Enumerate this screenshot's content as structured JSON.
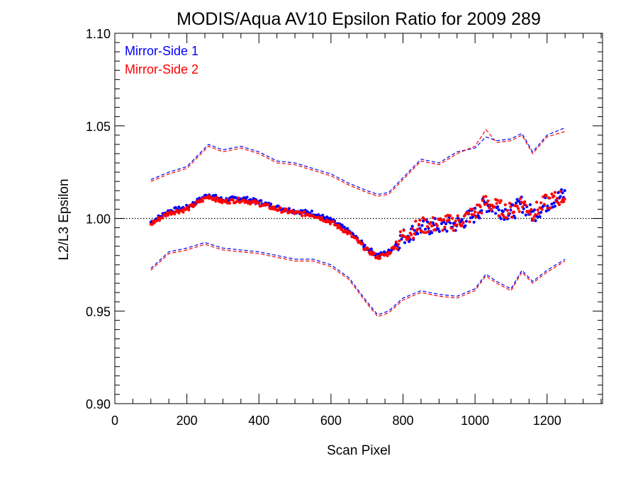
{
  "chart_data": {
    "type": "scatter",
    "title": "MODIS/Aqua AV10 Epsilon Ratio for 2009 289",
    "xlabel": "Scan Pixel",
    "ylabel": "L2/L3 Epsilon",
    "xlim": [
      0,
      1354
    ],
    "ylim": [
      0.9,
      1.1
    ],
    "x_ticks": [
      0,
      200,
      400,
      600,
      800,
      1000,
      1200
    ],
    "x_tick_labels": [
      "0",
      "200",
      "400",
      "600",
      "800",
      "1000",
      "1200"
    ],
    "y_ticks": [
      0.9,
      0.95,
      1.0,
      1.05,
      1.1
    ],
    "y_tick_labels": [
      "0.90",
      "0.95",
      "1.00",
      "1.05",
      "1.10"
    ],
    "reference_line": {
      "y": 1.0,
      "style": "dotted",
      "color": "#000000"
    },
    "legend_position": "top-left",
    "series": [
      {
        "name": "Mirror-Side 1",
        "color": "#0000ff",
        "mean": [
          [
            100,
            0.998
          ],
          [
            150,
            1.004
          ],
          [
            200,
            1.006
          ],
          [
            260,
            1.013
          ],
          [
            300,
            1.01
          ],
          [
            350,
            1.011
          ],
          [
            400,
            1.009
          ],
          [
            450,
            1.006
          ],
          [
            500,
            1.004
          ],
          [
            550,
            1.003
          ],
          [
            600,
            0.999
          ],
          [
            650,
            0.993
          ],
          [
            700,
            0.984
          ],
          [
            730,
            0.98
          ],
          [
            760,
            0.982
          ],
          [
            800,
            0.99
          ],
          [
            850,
            0.995
          ],
          [
            900,
            0.996
          ],
          [
            950,
            0.997
          ],
          [
            1000,
            1.002
          ],
          [
            1030,
            1.008
          ],
          [
            1060,
            1.005
          ],
          [
            1100,
            1.003
          ],
          [
            1130,
            1.008
          ],
          [
            1160,
            1.002
          ],
          [
            1200,
            1.008
          ],
          [
            1250,
            1.013
          ]
        ],
        "upper": [
          [
            100,
            1.021
          ],
          [
            150,
            1.025
          ],
          [
            200,
            1.028
          ],
          [
            260,
            1.04
          ],
          [
            300,
            1.037
          ],
          [
            350,
            1.039
          ],
          [
            400,
            1.036
          ],
          [
            450,
            1.031
          ],
          [
            500,
            1.03
          ],
          [
            550,
            1.027
          ],
          [
            600,
            1.024
          ],
          [
            650,
            1.019
          ],
          [
            700,
            1.015
          ],
          [
            730,
            1.013
          ],
          [
            760,
            1.014
          ],
          [
            800,
            1.022
          ],
          [
            850,
            1.032
          ],
          [
            900,
            1.03
          ],
          [
            950,
            1.036
          ],
          [
            1000,
            1.038
          ],
          [
            1030,
            1.044
          ],
          [
            1060,
            1.042
          ],
          [
            1100,
            1.043
          ],
          [
            1130,
            1.046
          ],
          [
            1160,
            1.036
          ],
          [
            1200,
            1.045
          ],
          [
            1250,
            1.049
          ]
        ],
        "lower": [
          [
            100,
            0.973
          ],
          [
            150,
            0.982
          ],
          [
            200,
            0.984
          ],
          [
            250,
            0.987
          ],
          [
            300,
            0.984
          ],
          [
            350,
            0.983
          ],
          [
            400,
            0.982
          ],
          [
            450,
            0.98
          ],
          [
            500,
            0.978
          ],
          [
            550,
            0.978
          ],
          [
            600,
            0.975
          ],
          [
            650,
            0.968
          ],
          [
            700,
            0.955
          ],
          [
            730,
            0.948
          ],
          [
            760,
            0.95
          ],
          [
            800,
            0.957
          ],
          [
            850,
            0.961
          ],
          [
            900,
            0.959
          ],
          [
            950,
            0.958
          ],
          [
            1000,
            0.962
          ],
          [
            1030,
            0.97
          ],
          [
            1060,
            0.966
          ],
          [
            1100,
            0.962
          ],
          [
            1130,
            0.972
          ],
          [
            1160,
            0.966
          ],
          [
            1200,
            0.972
          ],
          [
            1250,
            0.978
          ]
        ]
      },
      {
        "name": "Mirror-Side 2",
        "color": "#ff0000",
        "mean": [
          [
            100,
            0.997
          ],
          [
            150,
            1.003
          ],
          [
            200,
            1.005
          ],
          [
            260,
            1.012
          ],
          [
            300,
            1.009
          ],
          [
            350,
            1.01
          ],
          [
            400,
            1.008
          ],
          [
            450,
            1.005
          ],
          [
            500,
            1.003
          ],
          [
            550,
            1.002
          ],
          [
            600,
            0.998
          ],
          [
            650,
            0.992
          ],
          [
            700,
            0.983
          ],
          [
            730,
            0.979
          ],
          [
            760,
            0.981
          ],
          [
            800,
            0.991
          ],
          [
            850,
            0.996
          ],
          [
            900,
            0.997
          ],
          [
            950,
            0.998
          ],
          [
            1000,
            1.003
          ],
          [
            1030,
            1.009
          ],
          [
            1060,
            1.006
          ],
          [
            1100,
            1.004
          ],
          [
            1130,
            1.009
          ],
          [
            1160,
            1.003
          ],
          [
            1200,
            1.009
          ],
          [
            1250,
            1.012
          ]
        ],
        "upper": [
          [
            100,
            1.02
          ],
          [
            150,
            1.024
          ],
          [
            200,
            1.027
          ],
          [
            260,
            1.039
          ],
          [
            300,
            1.036
          ],
          [
            350,
            1.038
          ],
          [
            400,
            1.035
          ],
          [
            450,
            1.03
          ],
          [
            500,
            1.029
          ],
          [
            550,
            1.026
          ],
          [
            600,
            1.023
          ],
          [
            650,
            1.018
          ],
          [
            700,
            1.014
          ],
          [
            730,
            1.012
          ],
          [
            760,
            1.013
          ],
          [
            800,
            1.021
          ],
          [
            850,
            1.031
          ],
          [
            900,
            1.029
          ],
          [
            950,
            1.035
          ],
          [
            1000,
            1.039
          ],
          [
            1030,
            1.048
          ],
          [
            1060,
            1.041
          ],
          [
            1100,
            1.042
          ],
          [
            1130,
            1.045
          ],
          [
            1160,
            1.035
          ],
          [
            1200,
            1.044
          ],
          [
            1250,
            1.047
          ]
        ],
        "lower": [
          [
            100,
            0.972
          ],
          [
            150,
            0.981
          ],
          [
            200,
            0.983
          ],
          [
            250,
            0.986
          ],
          [
            300,
            0.983
          ],
          [
            350,
            0.982
          ],
          [
            400,
            0.981
          ],
          [
            450,
            0.979
          ],
          [
            500,
            0.977
          ],
          [
            550,
            0.977
          ],
          [
            600,
            0.974
          ],
          [
            650,
            0.967
          ],
          [
            700,
            0.954
          ],
          [
            730,
            0.947
          ],
          [
            760,
            0.949
          ],
          [
            800,
            0.956
          ],
          [
            850,
            0.96
          ],
          [
            900,
            0.958
          ],
          [
            950,
            0.957
          ],
          [
            1000,
            0.961
          ],
          [
            1030,
            0.969
          ],
          [
            1060,
            0.965
          ],
          [
            1100,
            0.961
          ],
          [
            1130,
            0.971
          ],
          [
            1160,
            0.965
          ],
          [
            1200,
            0.971
          ],
          [
            1250,
            0.977
          ]
        ]
      }
    ]
  }
}
